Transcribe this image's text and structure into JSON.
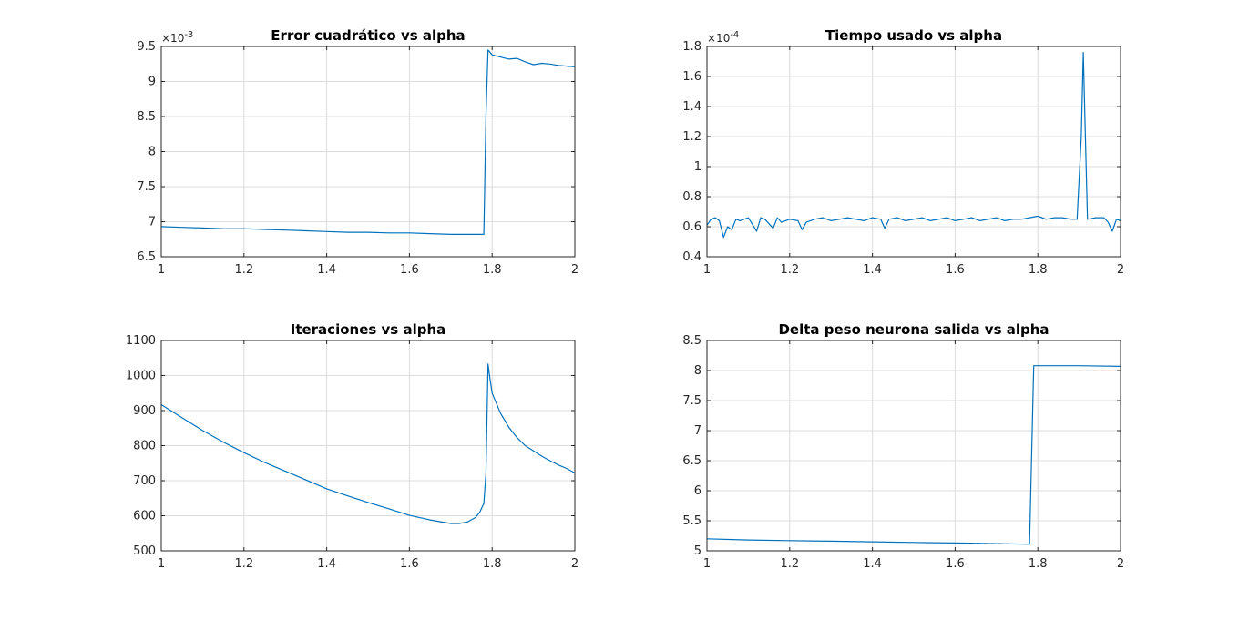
{
  "chart_data": [
    {
      "type": "line",
      "title": "Error cuadrático vs alpha",
      "xlabel": "",
      "ylabel": "",
      "xlim": [
        1,
        2
      ],
      "ylim": [
        6.5,
        9.5
      ],
      "xticks": [
        "1",
        "1.2",
        "1.4",
        "1.6",
        "1.8",
        "2"
      ],
      "yticks": [
        "6.5",
        "7",
        "7.5",
        "8",
        "8.5",
        "9",
        "9.5"
      ],
      "exponent_base": "×10",
      "exponent_power": "-3",
      "grid": true,
      "color": "#0072bd",
      "series": [
        {
          "x": [
            1.0,
            1.05,
            1.1,
            1.15,
            1.2,
            1.25,
            1.3,
            1.35,
            1.4,
            1.45,
            1.5,
            1.55,
            1.6,
            1.65,
            1.7,
            1.75,
            1.78,
            1.785,
            1.79,
            1.8,
            1.82,
            1.84,
            1.86,
            1.88,
            1.9,
            1.92,
            1.94,
            1.96,
            1.98,
            2.0
          ],
          "y": [
            6.93,
            6.92,
            6.91,
            6.9,
            6.9,
            6.89,
            6.88,
            6.87,
            6.86,
            6.85,
            6.85,
            6.84,
            6.84,
            6.83,
            6.82,
            6.82,
            6.82,
            8.5,
            9.45,
            9.38,
            9.35,
            9.32,
            9.33,
            9.28,
            9.24,
            9.26,
            9.25,
            9.23,
            9.22,
            9.21
          ]
        }
      ]
    },
    {
      "type": "line",
      "title": "Tiempo usado vs alpha",
      "xlabel": "",
      "ylabel": "",
      "xlim": [
        1,
        2
      ],
      "ylim": [
        0.4,
        1.8
      ],
      "xticks": [
        "1",
        "1.2",
        "1.4",
        "1.6",
        "1.8",
        "2"
      ],
      "yticks": [
        "0.4",
        "0.6",
        "0.8",
        "1",
        "1.2",
        "1.4",
        "1.6",
        "1.8"
      ],
      "exponent_base": "×10",
      "exponent_power": "-4",
      "grid": true,
      "color": "#0072bd",
      "series": [
        {
          "x": [
            1.0,
            1.01,
            1.02,
            1.03,
            1.04,
            1.05,
            1.06,
            1.07,
            1.08,
            1.1,
            1.12,
            1.13,
            1.14,
            1.16,
            1.17,
            1.18,
            1.2,
            1.22,
            1.23,
            1.24,
            1.26,
            1.28,
            1.3,
            1.32,
            1.34,
            1.36,
            1.38,
            1.4,
            1.42,
            1.43,
            1.44,
            1.46,
            1.48,
            1.5,
            1.52,
            1.54,
            1.56,
            1.58,
            1.6,
            1.62,
            1.64,
            1.66,
            1.68,
            1.7,
            1.72,
            1.74,
            1.76,
            1.78,
            1.8,
            1.82,
            1.84,
            1.86,
            1.88,
            1.895,
            1.905,
            1.91,
            1.915,
            1.92,
            1.94,
            1.96,
            1.97,
            1.98,
            1.99,
            2.0
          ],
          "y": [
            0.61,
            0.65,
            0.66,
            0.64,
            0.53,
            0.6,
            0.58,
            0.65,
            0.64,
            0.66,
            0.57,
            0.66,
            0.65,
            0.59,
            0.66,
            0.63,
            0.65,
            0.64,
            0.58,
            0.63,
            0.65,
            0.66,
            0.64,
            0.65,
            0.66,
            0.65,
            0.64,
            0.66,
            0.65,
            0.59,
            0.65,
            0.66,
            0.64,
            0.65,
            0.66,
            0.64,
            0.65,
            0.66,
            0.64,
            0.65,
            0.66,
            0.64,
            0.65,
            0.66,
            0.64,
            0.65,
            0.65,
            0.66,
            0.67,
            0.65,
            0.66,
            0.66,
            0.65,
            0.65,
            1.2,
            1.76,
            1.2,
            0.65,
            0.66,
            0.66,
            0.63,
            0.57,
            0.65,
            0.64
          ]
        }
      ]
    },
    {
      "type": "line",
      "title": "Iteraciones vs alpha",
      "xlabel": "",
      "ylabel": "",
      "xlim": [
        1,
        2
      ],
      "ylim": [
        500,
        1100
      ],
      "xticks": [
        "1",
        "1.2",
        "1.4",
        "1.6",
        "1.8",
        "2"
      ],
      "yticks": [
        "500",
        "600",
        "700",
        "800",
        "900",
        "1000",
        "1100"
      ],
      "grid": true,
      "color": "#0072bd",
      "series": [
        {
          "x": [
            1.0,
            1.05,
            1.1,
            1.15,
            1.2,
            1.25,
            1.3,
            1.35,
            1.4,
            1.45,
            1.5,
            1.55,
            1.6,
            1.65,
            1.7,
            1.72,
            1.74,
            1.76,
            1.77,
            1.78,
            1.785,
            1.79,
            1.795,
            1.8,
            1.82,
            1.84,
            1.86,
            1.88,
            1.9,
            1.92,
            1.94,
            1.96,
            1.98,
            2.0
          ],
          "y": [
            917,
            880,
            843,
            810,
            780,
            752,
            727,
            702,
            677,
            657,
            638,
            620,
            601,
            588,
            578,
            578,
            582,
            595,
            610,
            635,
            720,
            1033,
            990,
            950,
            893,
            853,
            823,
            800,
            785,
            770,
            757,
            745,
            735,
            722
          ]
        }
      ]
    },
    {
      "type": "line",
      "title": "Delta peso neurona salida vs alpha",
      "xlabel": "",
      "ylabel": "",
      "xlim": [
        1,
        2
      ],
      "ylim": [
        5,
        8.5
      ],
      "xticks": [
        "1",
        "1.2",
        "1.4",
        "1.6",
        "1.8",
        "2"
      ],
      "yticks": [
        "5",
        "5.5",
        "6",
        "6.5",
        "7",
        "7.5",
        "8",
        "8.5"
      ],
      "grid": true,
      "color": "#0072bd",
      "series": [
        {
          "x": [
            1.0,
            1.1,
            1.2,
            1.3,
            1.4,
            1.5,
            1.6,
            1.7,
            1.77,
            1.78,
            1.79,
            1.8,
            1.9,
            2.0
          ],
          "y": [
            5.2,
            5.18,
            5.17,
            5.16,
            5.15,
            5.14,
            5.13,
            5.12,
            5.11,
            5.11,
            8.08,
            8.08,
            8.08,
            8.07
          ]
        }
      ]
    }
  ]
}
